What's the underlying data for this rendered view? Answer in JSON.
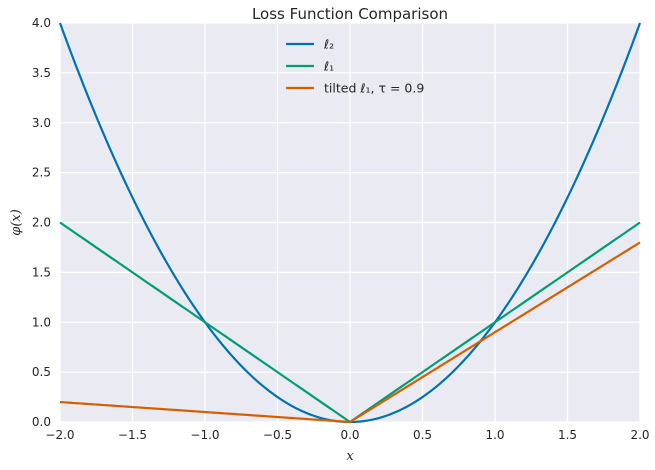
{
  "chart_data": {
    "type": "line",
    "title": "Loss Function Comparison",
    "xlabel": "x",
    "ylabel": "φ(x)",
    "xlim": [
      -2.0,
      2.0
    ],
    "ylim": [
      0.0,
      4.0
    ],
    "xticks": [
      "−2.0",
      "−1.5",
      "−1.0",
      "−0.5",
      "0.0",
      "0.5",
      "1.0",
      "1.5",
      "2.0"
    ],
    "yticks": [
      "0.0",
      "0.5",
      "1.0",
      "1.5",
      "2.0",
      "2.5",
      "3.0",
      "3.5",
      "4.0"
    ],
    "grid": true,
    "legend_position": "top-center",
    "background": "#eaeaf2",
    "series": [
      {
        "name": "ℓ₂",
        "color": "#0072b2",
        "function": "x^2",
        "x": [
          -2.0,
          -1.5,
          -1.0,
          -0.5,
          0.0,
          0.5,
          1.0,
          1.5,
          2.0
        ],
        "y": [
          4.0,
          2.25,
          1.0,
          0.25,
          0.0,
          0.25,
          1.0,
          2.25,
          4.0
        ]
      },
      {
        "name": "ℓ₁",
        "color": "#009e73",
        "function": "|x|",
        "x": [
          -2.0,
          0.0,
          2.0
        ],
        "y": [
          2.0,
          0.0,
          2.0
        ]
      },
      {
        "name": "tilted ℓ₁, τ = 0.9",
        "color": "#d55e00",
        "function": "tilted",
        "x": [
          -2.0,
          0.0,
          2.0
        ],
        "y": [
          0.2,
          0.0,
          1.8
        ]
      }
    ]
  }
}
